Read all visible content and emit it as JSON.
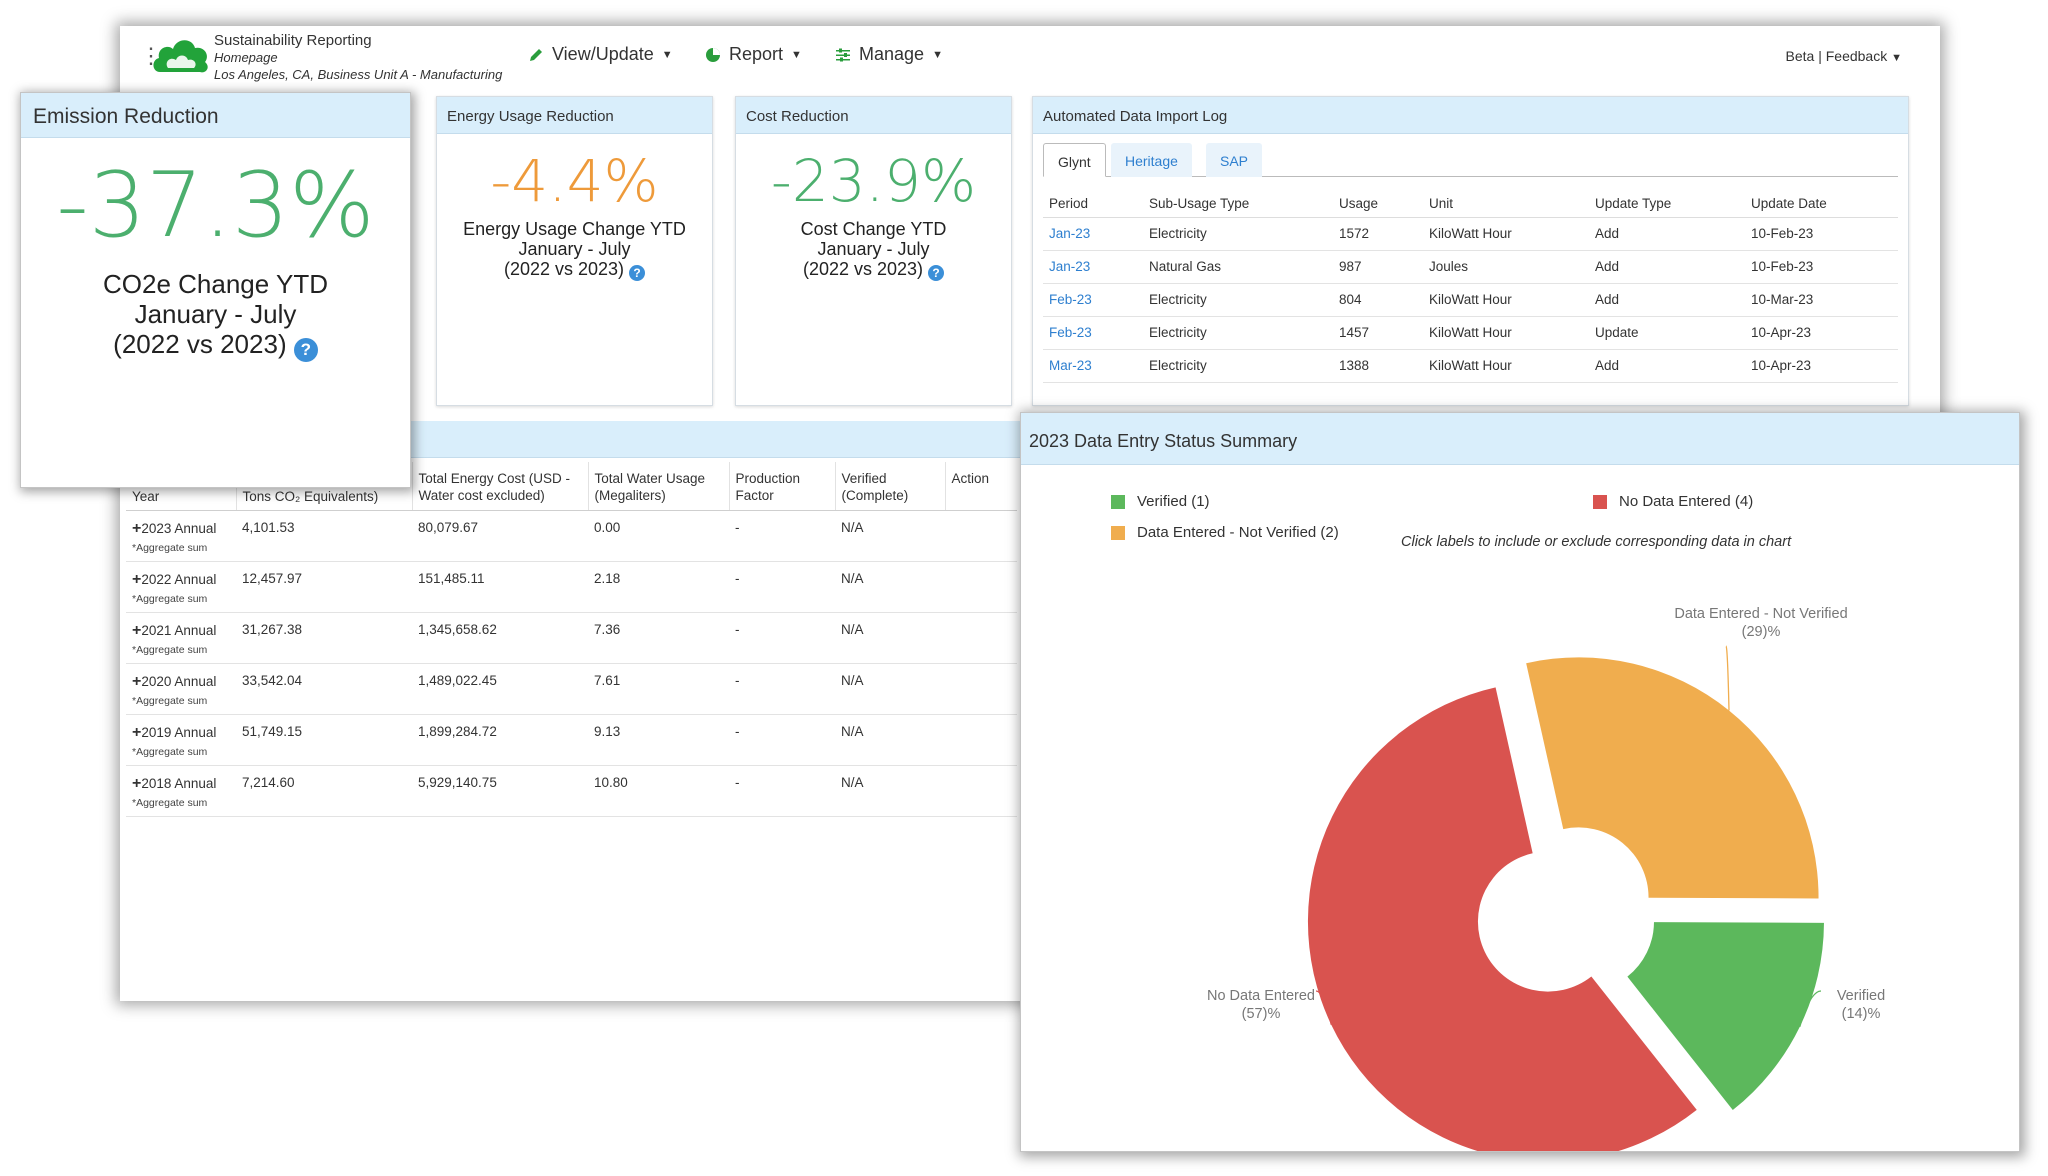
{
  "header": {
    "app_name": "Sustainability Reporting",
    "page": "Homepage",
    "location": "Los Angeles, CA, Business Unit A - Manufacturing",
    "nav": [
      {
        "label": "View/Update",
        "icon": "pencil-icon"
      },
      {
        "label": "Report",
        "icon": "pie-chart-icon"
      },
      {
        "label": "Manage",
        "icon": "sliders-icon"
      }
    ],
    "beta_label": "Beta | Feedback"
  },
  "emission": {
    "title": "Emission Reduction",
    "value": "-37.3%",
    "line1": "CO2e Change YTD",
    "line2": "January - July",
    "line3": "(2022 vs 2023)",
    "color": "#4caf6e"
  },
  "energy": {
    "title": "Energy Usage Reduction",
    "value": "-4.4%",
    "line1": "Energy Usage Change YTD",
    "line2": "January - July",
    "line3": "(2022 vs 2023)",
    "color": "#ee9a3a"
  },
  "cost": {
    "title": "Cost Reduction",
    "value": "-23.9%",
    "line1": "Cost Change YTD",
    "line2": "January - July",
    "line3": "(2022 vs 2023)",
    "color": "#4caf6e"
  },
  "import_log": {
    "title": "Automated Data Import Log",
    "tabs": [
      "Glynt",
      "Heritage",
      "SAP"
    ],
    "columns": [
      "Period",
      "Sub-Usage Type",
      "Usage",
      "Unit",
      "Update Type",
      "Update Date"
    ],
    "rows": [
      [
        "Jan-23",
        "Electricity",
        "1572",
        "KiloWatt Hour",
        "Add",
        "10-Feb-23"
      ],
      [
        "Jan-23",
        "Natural Gas",
        "987",
        "Joules",
        "Add",
        "10-Feb-23"
      ],
      [
        "Feb-23",
        "Electricity",
        "804",
        "KiloWatt Hour",
        "Add",
        "10-Mar-23"
      ],
      [
        "Feb-23",
        "Electricity",
        "1457",
        "KiloWatt Hour",
        "Update",
        "10-Apr-23"
      ],
      [
        "Mar-23",
        "Electricity",
        "1388",
        "KiloWatt Hour",
        "Add",
        "10-Apr-23"
      ]
    ]
  },
  "annual": {
    "columns": [
      "Year",
      "Tons CO₂ Equivalents)",
      "Total Energy Cost (USD - Water cost excluded)",
      "Total Water Usage (Megaliters)",
      "Production Factor",
      "Verified (Complete)",
      "Action"
    ],
    "aggregate_label": "*Aggregate sum",
    "rows": [
      [
        "2023 Annual",
        "4,101.53",
        "80,079.67",
        "0.00",
        "-",
        "N/A"
      ],
      [
        "2022 Annual",
        "12,457.97",
        "151,485.11",
        "2.18",
        "-",
        "N/A"
      ],
      [
        "2021 Annual",
        "31,267.38",
        "1,345,658.62",
        "7.36",
        "-",
        "N/A"
      ],
      [
        "2020 Annual",
        "33,542.04",
        "1,489,022.45",
        "7.61",
        "-",
        "N/A"
      ],
      [
        "2019 Annual",
        "51,749.15",
        "1,899,284.72",
        "9.13",
        "-",
        "N/A"
      ],
      [
        "2018 Annual",
        "7,214.60",
        "5,929,140.75",
        "10.80",
        "-",
        "N/A"
      ]
    ]
  },
  "status": {
    "title": "2023 Data Entry Status Summary",
    "hint": "Click labels to include or exclude corresponding data in chart",
    "legend": [
      {
        "label": "Verified (1)",
        "color": "#5cb85c"
      },
      {
        "label": "Data Entered - Not Verified (2)",
        "color": "#f0ad4e"
      },
      {
        "label": "No Data Entered (4)",
        "color": "#d9534f"
      }
    ]
  },
  "chart_data": {
    "type": "pie",
    "variant": "donut-exploded",
    "title": "2023 Data Entry Status Summary",
    "slices": [
      {
        "name": "Data Entered - Not Verified",
        "count": 2,
        "percent": 29,
        "label": "(29)%",
        "color": "#f0ad4e"
      },
      {
        "name": "Verified",
        "count": 1,
        "percent": 14,
        "label": "(14)%",
        "color": "#5cb85c"
      },
      {
        "name": "No Data Entered",
        "count": 4,
        "percent": 57,
        "label": "(57)%",
        "color": "#d9534f"
      }
    ],
    "legend_position": "top"
  }
}
